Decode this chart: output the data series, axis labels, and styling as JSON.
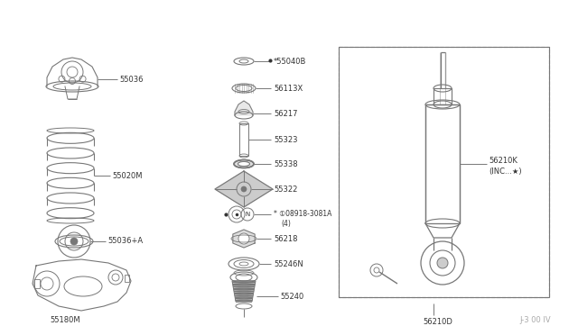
{
  "bg_color": "#ffffff",
  "line_color": "#777777",
  "dark_color": "#333333",
  "watermark": "J-3 00 IV",
  "shock_label": "56210K\n(INC...★)",
  "shock_label2": "56210D"
}
